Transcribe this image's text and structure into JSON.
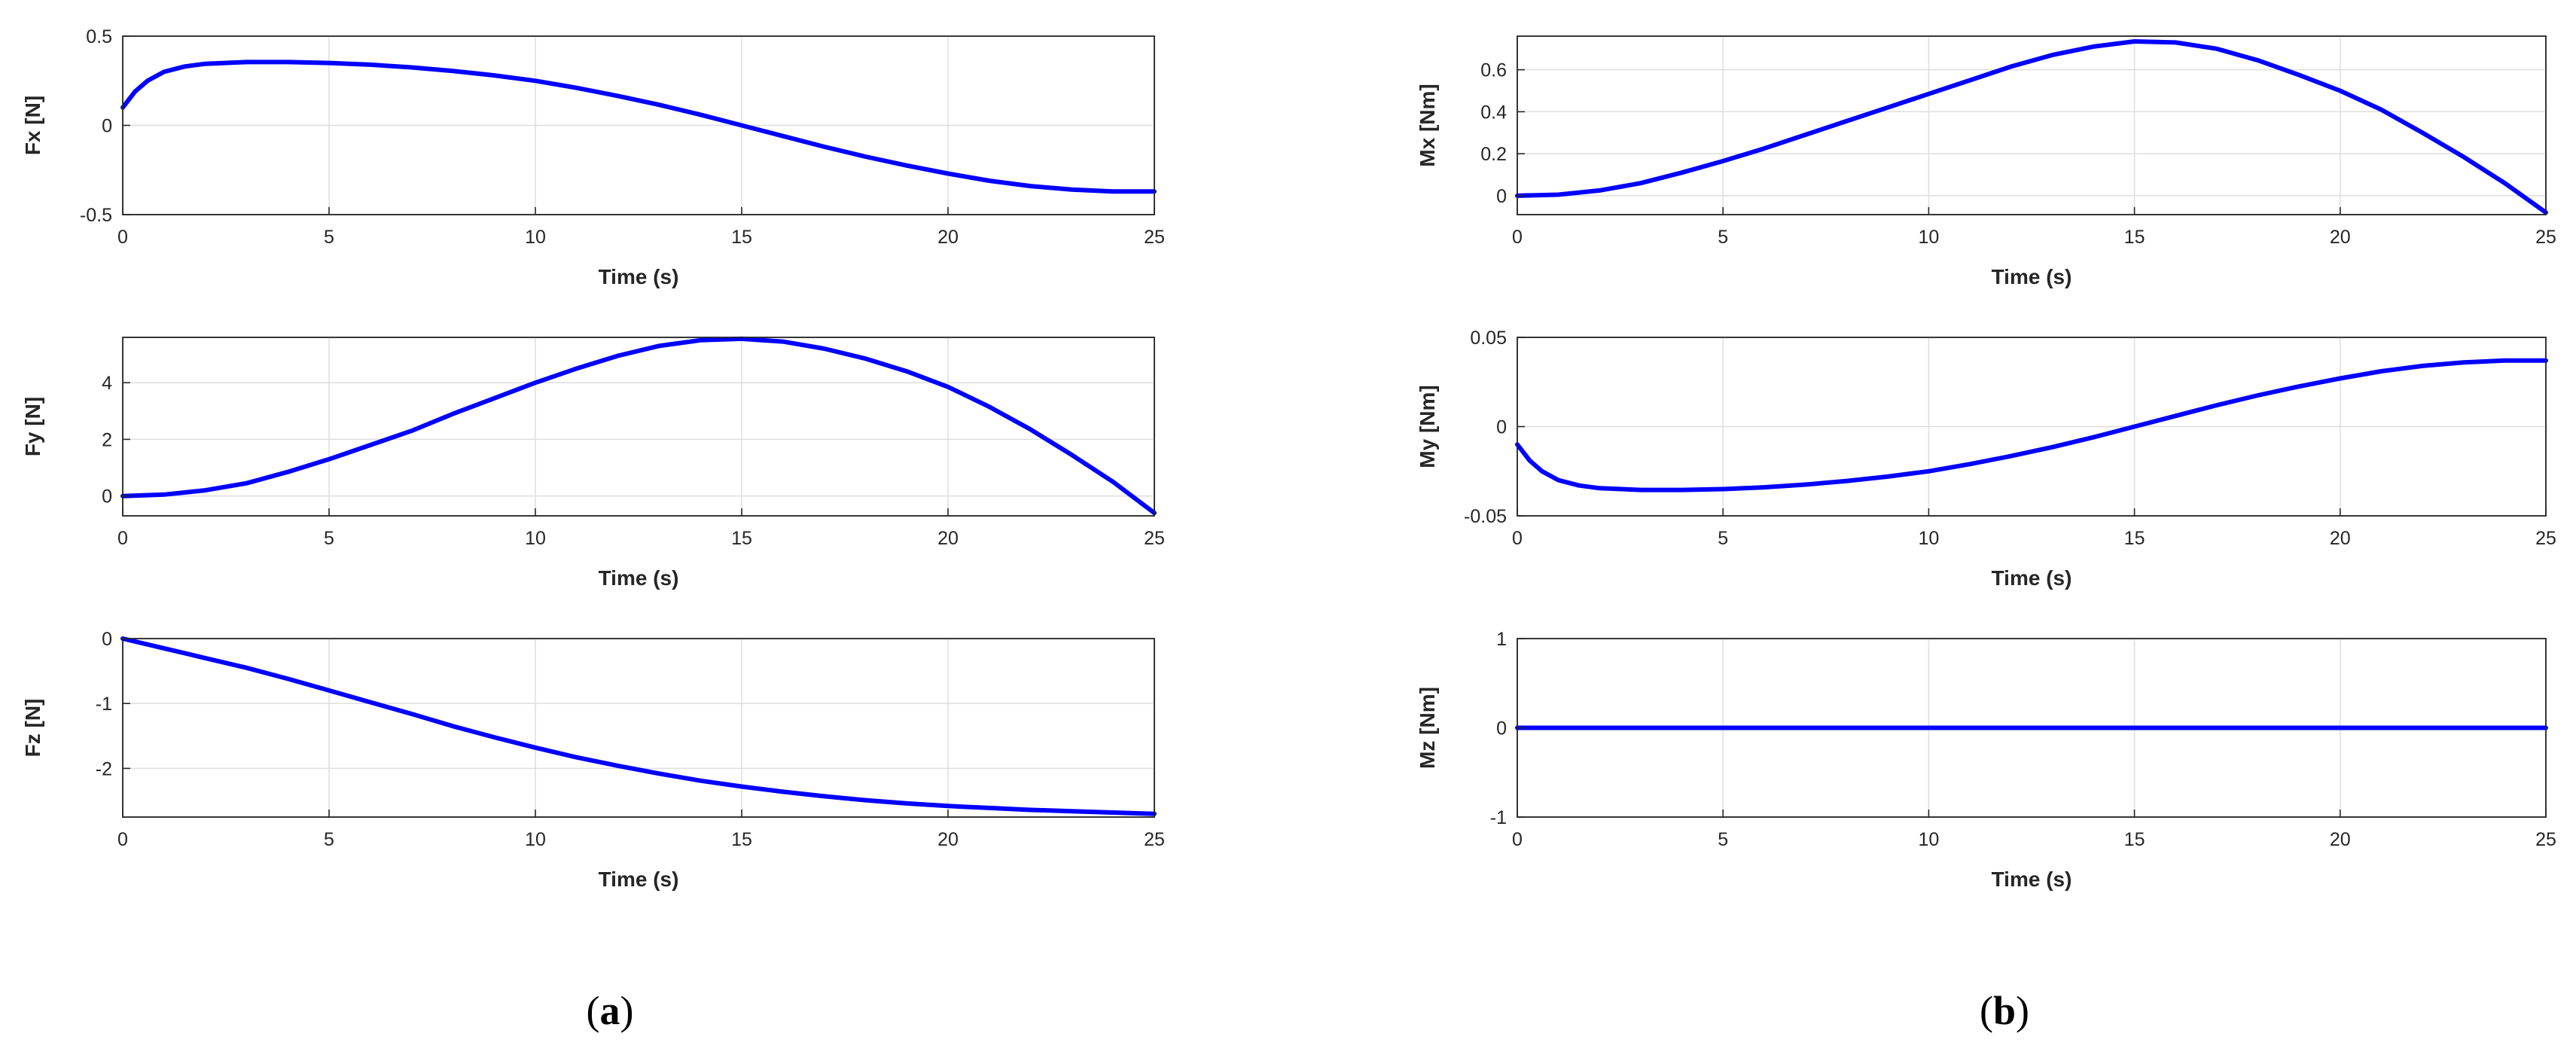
{
  "colors": {
    "series": "#0000ff",
    "axis": "#262626",
    "grid": "#dedede"
  },
  "panels": [
    {
      "open": "(",
      "letter": "a",
      "close": ")"
    },
    {
      "open": "(",
      "letter": "b",
      "close": ")"
    }
  ],
  "chart_data": [
    {
      "type": "line",
      "panel": "a",
      "xlabel": "Time (s)",
      "ylabel": "Fx [N]",
      "xlim": [
        0,
        25
      ],
      "ylim": [
        -0.5,
        0.5
      ],
      "xticks": [
        0,
        5,
        10,
        15,
        20,
        25
      ],
      "yticks": [
        -0.5,
        0,
        0.5
      ],
      "yticklabels": [
        "-0.5",
        "0",
        "0.5"
      ],
      "grid": true,
      "x": [
        0,
        0.3,
        0.6,
        1,
        1.5,
        2,
        3,
        4,
        5,
        6,
        7,
        8,
        9,
        10,
        11,
        12,
        13,
        14,
        15,
        16,
        17,
        18,
        19,
        20,
        21,
        22,
        23,
        24,
        25
      ],
      "series": [
        {
          "values": [
            0.1,
            0.19,
            0.25,
            0.3,
            0.33,
            0.345,
            0.355,
            0.355,
            0.35,
            0.34,
            0.325,
            0.305,
            0.28,
            0.25,
            0.21,
            0.165,
            0.115,
            0.06,
            0.0,
            -0.06,
            -0.12,
            -0.175,
            -0.225,
            -0.27,
            -0.31,
            -0.34,
            -0.36,
            -0.37,
            -0.37
          ]
        }
      ]
    },
    {
      "type": "line",
      "panel": "a",
      "xlabel": "Time (s)",
      "ylabel": "Fy [N]",
      "xlim": [
        0,
        25
      ],
      "ylim": [
        -0.7,
        5.6
      ],
      "xticks": [
        0,
        5,
        10,
        15,
        20,
        25
      ],
      "yticks": [
        0,
        2,
        4
      ],
      "yticklabels": [
        "0",
        "2",
        "4"
      ],
      "grid": true,
      "x": [
        0,
        1,
        2,
        3,
        4,
        5,
        6,
        7,
        8,
        9,
        10,
        11,
        12,
        13,
        14,
        15,
        16,
        17,
        18,
        19,
        20,
        21,
        22,
        23,
        24,
        25
      ],
      "series": [
        {
          "values": [
            0.0,
            0.05,
            0.2,
            0.45,
            0.85,
            1.3,
            1.8,
            2.3,
            2.9,
            3.45,
            4.0,
            4.5,
            4.95,
            5.3,
            5.5,
            5.55,
            5.45,
            5.2,
            4.85,
            4.4,
            3.85,
            3.15,
            2.35,
            1.45,
            0.5,
            -0.6
          ]
        }
      ]
    },
    {
      "type": "line",
      "panel": "a",
      "xlabel": "Time (s)",
      "ylabel": "Fz [N]",
      "xlim": [
        0,
        25
      ],
      "ylim": [
        -2.75,
        0
      ],
      "xticks": [
        0,
        5,
        10,
        15,
        20,
        25
      ],
      "yticks": [
        -2,
        -1,
        0
      ],
      "yticklabels": [
        "-2",
        "-1",
        "0"
      ],
      "grid": true,
      "x": [
        0,
        1,
        2,
        3,
        4,
        5,
        6,
        7,
        8,
        9,
        10,
        11,
        12,
        13,
        14,
        15,
        16,
        17,
        18,
        19,
        20,
        21,
        22,
        23,
        24,
        25
      ],
      "series": [
        {
          "values": [
            0.0,
            -0.15,
            -0.3,
            -0.45,
            -0.62,
            -0.8,
            -0.98,
            -1.16,
            -1.35,
            -1.52,
            -1.68,
            -1.83,
            -1.96,
            -2.08,
            -2.19,
            -2.28,
            -2.36,
            -2.43,
            -2.49,
            -2.54,
            -2.58,
            -2.61,
            -2.64,
            -2.66,
            -2.68,
            -2.7
          ]
        }
      ]
    },
    {
      "type": "line",
      "panel": "b",
      "xlabel": "Time (s)",
      "ylabel": "Mx [Nm]",
      "xlim": [
        0,
        25
      ],
      "ylim": [
        -0.09,
        0.76
      ],
      "xticks": [
        0,
        5,
        10,
        15,
        20,
        25
      ],
      "yticks": [
        0,
        0.2,
        0.4,
        0.6
      ],
      "yticklabels": [
        "0",
        "0.2",
        "0.4",
        "0.6"
      ],
      "grid": true,
      "x": [
        0,
        1,
        2,
        3,
        4,
        5,
        6,
        7,
        8,
        9,
        10,
        11,
        12,
        13,
        14,
        15,
        16,
        17,
        18,
        19,
        20,
        21,
        22,
        23,
        24,
        25
      ],
      "series": [
        {
          "values": [
            0.0,
            0.005,
            0.025,
            0.06,
            0.11,
            0.165,
            0.225,
            0.29,
            0.355,
            0.42,
            0.485,
            0.55,
            0.615,
            0.67,
            0.71,
            0.735,
            0.73,
            0.7,
            0.645,
            0.575,
            0.5,
            0.41,
            0.3,
            0.185,
            0.06,
            -0.08
          ]
        }
      ]
    },
    {
      "type": "line",
      "panel": "b",
      "xlabel": "Time (s)",
      "ylabel": "My [Nm]",
      "xlim": [
        0,
        25
      ],
      "ylim": [
        -0.05,
        0.05
      ],
      "xticks": [
        0,
        5,
        10,
        15,
        20,
        25
      ],
      "yticks": [
        -0.05,
        0,
        0.05
      ],
      "yticklabels": [
        "-0.05",
        "0",
        "0.05"
      ],
      "grid": true,
      "x": [
        0,
        0.3,
        0.6,
        1,
        1.5,
        2,
        3,
        4,
        5,
        6,
        7,
        8,
        9,
        10,
        11,
        12,
        13,
        14,
        15,
        16,
        17,
        18,
        19,
        20,
        21,
        22,
        23,
        24,
        25
      ],
      "series": [
        {
          "values": [
            -0.01,
            -0.019,
            -0.025,
            -0.03,
            -0.033,
            -0.0345,
            -0.0355,
            -0.0355,
            -0.035,
            -0.034,
            -0.0325,
            -0.0305,
            -0.028,
            -0.025,
            -0.021,
            -0.0165,
            -0.0115,
            -0.006,
            0.0,
            0.006,
            0.012,
            0.0175,
            0.0225,
            0.027,
            0.031,
            0.034,
            0.036,
            0.037,
            0.037
          ]
        }
      ]
    },
    {
      "type": "line",
      "panel": "b",
      "xlabel": "Time (s)",
      "ylabel": "Mz [Nm]",
      "xlim": [
        0,
        25
      ],
      "ylim": [
        -1,
        1
      ],
      "xticks": [
        0,
        5,
        10,
        15,
        20,
        25
      ],
      "yticks": [
        -1,
        0,
        1
      ],
      "yticklabels": [
        "-1",
        "0",
        "1"
      ],
      "grid": true,
      "x": [
        0,
        25
      ],
      "series": [
        {
          "values": [
            0,
            0
          ]
        }
      ]
    }
  ]
}
